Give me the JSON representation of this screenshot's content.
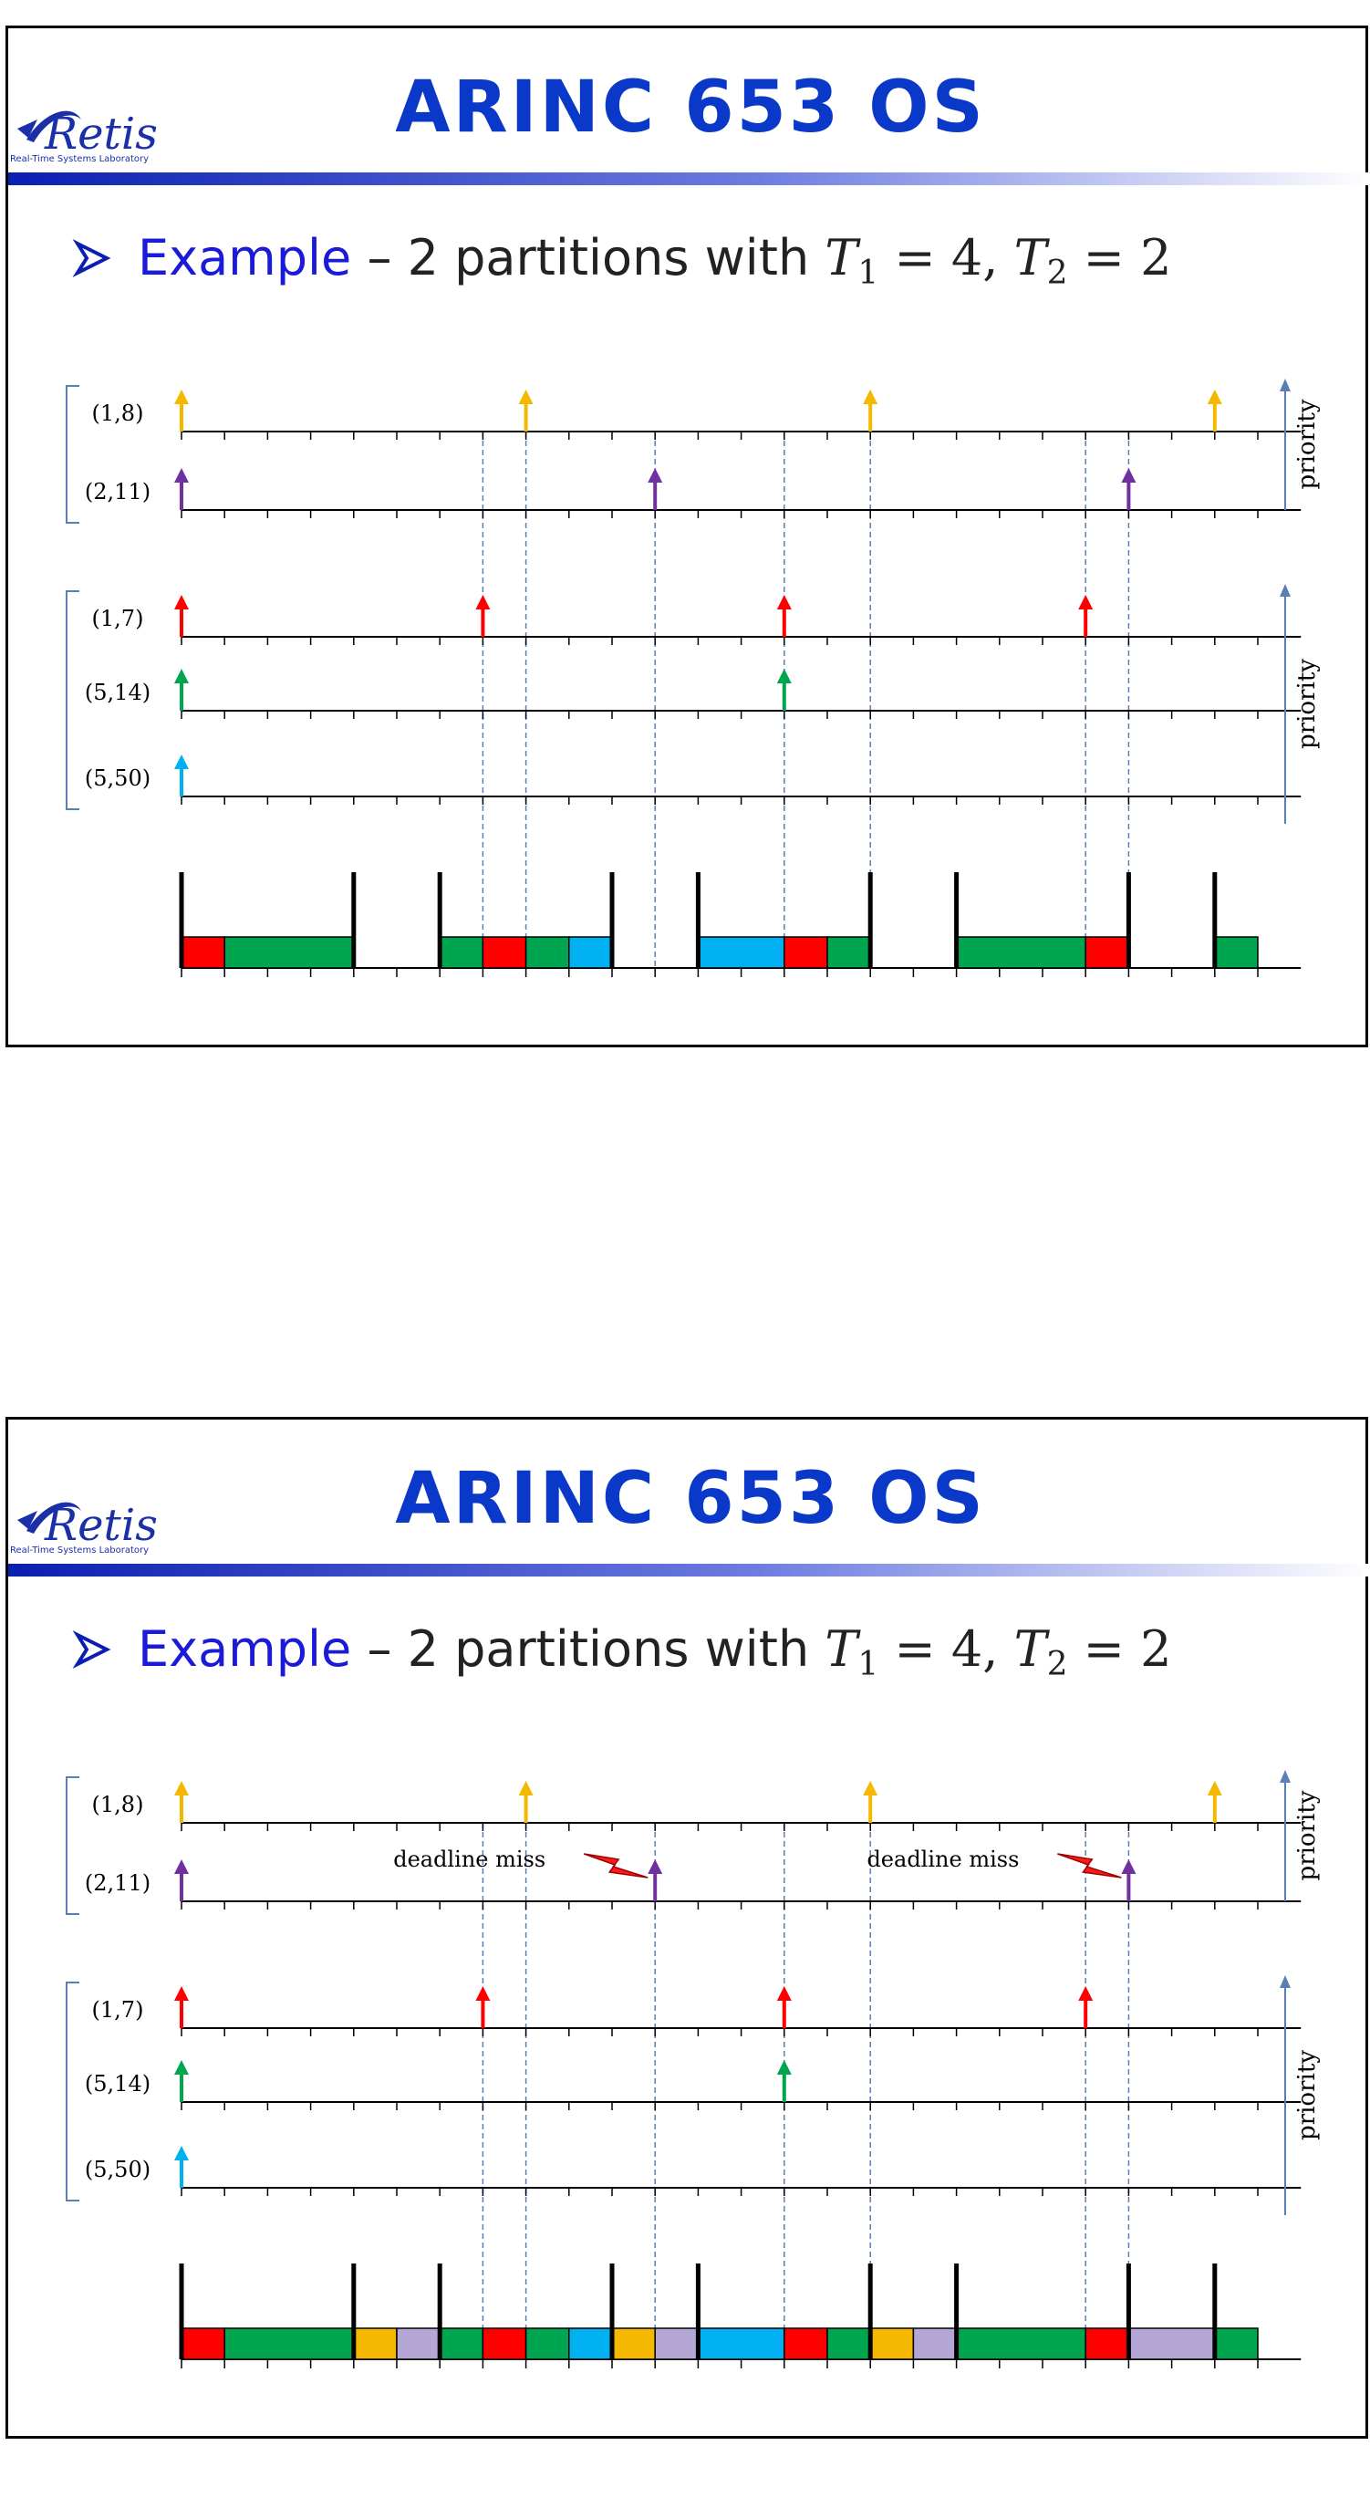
{
  "slides": [
    {
      "title": "ARINC 653 OS",
      "logo": {
        "name": "Retis",
        "caption": "Real-Time Systems Laboratory"
      },
      "bullet": {
        "lead": "Example",
        "text": " – 2 partitions with ",
        "t1": "T",
        "t1_sub": "1",
        "t1_val": " = 4, ",
        "t2": "T",
        "t2_sub": "2",
        "t2_val": " = 2"
      },
      "partitions": [
        {
          "tasks": [
            {
              "label": "(1,8)",
              "color": "#f5b800",
              "releases": [
                0,
                8,
                16,
                24
              ]
            },
            {
              "label": "(2,11)",
              "color": "#7030a0",
              "releases": [
                0,
                11,
                22
              ]
            }
          ]
        },
        {
          "tasks": [
            {
              "label": "(1,7)",
              "color": "#ff0000",
              "releases": [
                0,
                7,
                14,
                21
              ]
            },
            {
              "label": "(5,14)",
              "color": "#00a550",
              "releases": [
                0,
                14
              ]
            },
            {
              "label": "(5,50)",
              "color": "#00b0f0",
              "releases": [
                0
              ]
            }
          ]
        }
      ],
      "priority_label": "priority",
      "guides": [
        7,
        8,
        11,
        14,
        16,
        21,
        22
      ],
      "boundaries": [
        0,
        4,
        6,
        10,
        12,
        16,
        18,
        22,
        24
      ],
      "schedule": [
        {
          "start": 0,
          "end": 1,
          "color": "#ff0000"
        },
        {
          "start": 1,
          "end": 4,
          "color": "#00a550"
        },
        {
          "start": 6,
          "end": 7,
          "color": "#00a550"
        },
        {
          "start": 7,
          "end": 8,
          "color": "#ff0000"
        },
        {
          "start": 8,
          "end": 9,
          "color": "#00a550"
        },
        {
          "start": 9,
          "end": 10,
          "color": "#00b0f0"
        },
        {
          "start": 12,
          "end": 14,
          "color": "#00b0f0"
        },
        {
          "start": 14,
          "end": 15,
          "color": "#ff0000"
        },
        {
          "start": 15,
          "end": 16,
          "color": "#00a550"
        },
        {
          "start": 18,
          "end": 21,
          "color": "#00a550"
        },
        {
          "start": 21,
          "end": 22,
          "color": "#ff0000"
        },
        {
          "start": 24,
          "end": 25,
          "color": "#00a550"
        }
      ],
      "deadline_misses": []
    },
    {
      "title": "ARINC 653 OS",
      "logo": {
        "name": "Retis",
        "caption": "Real-Time Systems Laboratory"
      },
      "bullet": {
        "lead": "Example",
        "text": " – 2 partitions with ",
        "t1": "T",
        "t1_sub": "1",
        "t1_val": " = 4, ",
        "t2": "T",
        "t2_sub": "2",
        "t2_val": " = 2"
      },
      "partitions": [
        {
          "tasks": [
            {
              "label": "(1,8)",
              "color": "#f5b800",
              "releases": [
                0,
                8,
                16,
                24
              ]
            },
            {
              "label": "(2,11)",
              "color": "#7030a0",
              "releases": [
                0,
                11,
                22
              ]
            }
          ]
        },
        {
          "tasks": [
            {
              "label": "(1,7)",
              "color": "#ff0000",
              "releases": [
                0,
                7,
                14,
                21
              ]
            },
            {
              "label": "(5,14)",
              "color": "#00a550",
              "releases": [
                0,
                14
              ]
            },
            {
              "label": "(5,50)",
              "color": "#00b0f0",
              "releases": [
                0
              ]
            }
          ]
        }
      ],
      "priority_label": "priority",
      "guides": [
        7,
        8,
        11,
        14,
        16,
        21,
        22
      ],
      "boundaries": [
        0,
        4,
        6,
        10,
        12,
        16,
        18,
        22,
        24
      ],
      "schedule": [
        {
          "start": 0,
          "end": 1,
          "color": "#ff0000"
        },
        {
          "start": 1,
          "end": 4,
          "color": "#00a550"
        },
        {
          "start": 4,
          "end": 5,
          "color": "#f5b800"
        },
        {
          "start": 5,
          "end": 6,
          "color": "#b4a7d6"
        },
        {
          "start": 6,
          "end": 7,
          "color": "#00a550"
        },
        {
          "start": 7,
          "end": 8,
          "color": "#ff0000"
        },
        {
          "start": 8,
          "end": 9,
          "color": "#00a550"
        },
        {
          "start": 9,
          "end": 10,
          "color": "#00b0f0"
        },
        {
          "start": 10,
          "end": 11,
          "color": "#f5b800"
        },
        {
          "start": 11,
          "end": 12,
          "color": "#b4a7d6"
        },
        {
          "start": 12,
          "end": 14,
          "color": "#00b0f0"
        },
        {
          "start": 14,
          "end": 15,
          "color": "#ff0000"
        },
        {
          "start": 15,
          "end": 16,
          "color": "#00a550"
        },
        {
          "start": 16,
          "end": 17,
          "color": "#f5b800"
        },
        {
          "start": 17,
          "end": 18,
          "color": "#b4a7d6"
        },
        {
          "start": 18,
          "end": 21,
          "color": "#00a550"
        },
        {
          "start": 21,
          "end": 22,
          "color": "#ff0000"
        },
        {
          "start": 22,
          "end": 24,
          "color": "#b4a7d6"
        },
        {
          "start": 24,
          "end": 25,
          "color": "#00a550"
        }
      ],
      "deadline_misses": [
        {
          "label": "deadline miss",
          "at": 11
        },
        {
          "label": "deadline miss",
          "at": 22
        }
      ]
    }
  ]
}
